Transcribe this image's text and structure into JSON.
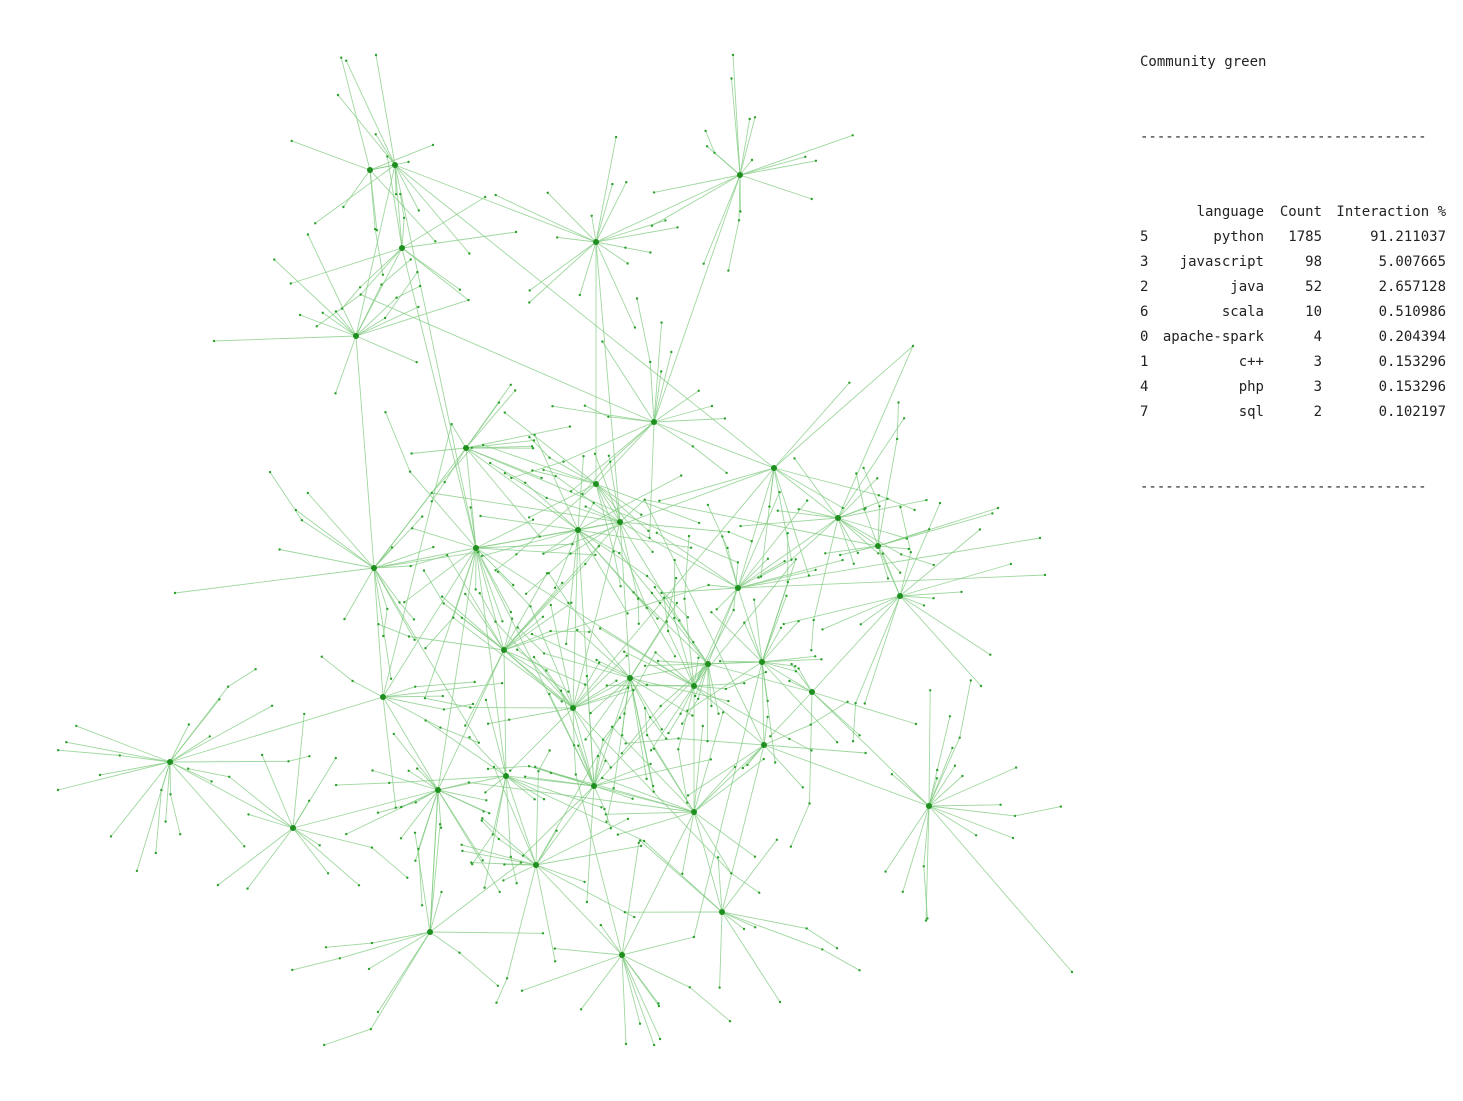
{
  "graph": {
    "edge_color": "#7fc97f",
    "node_color": "#2ca02c",
    "hub_color": "#1f8f1f"
  },
  "stats": {
    "title": "Community green",
    "divider": "----------------------------------",
    "headers": {
      "index": "",
      "language": "language",
      "count": "Count",
      "interaction": "Interaction %"
    },
    "rows": [
      {
        "index": "5",
        "language": "python",
        "count": "1785",
        "interaction": "91.211037"
      },
      {
        "index": "3",
        "language": "javascript",
        "count": "98",
        "interaction": "5.007665"
      },
      {
        "index": "2",
        "language": "java",
        "count": "52",
        "interaction": "2.657128"
      },
      {
        "index": "6",
        "language": "scala",
        "count": "10",
        "interaction": "0.510986"
      },
      {
        "index": "0",
        "language": "apache-spark",
        "count": "4",
        "interaction": "0.204394"
      },
      {
        "index": "1",
        "language": "c++",
        "count": "3",
        "interaction": "0.153296"
      },
      {
        "index": "4",
        "language": "php",
        "count": "3",
        "interaction": "0.153296"
      },
      {
        "index": "7",
        "language": "sql",
        "count": "2",
        "interaction": "0.102197"
      }
    ]
  }
}
